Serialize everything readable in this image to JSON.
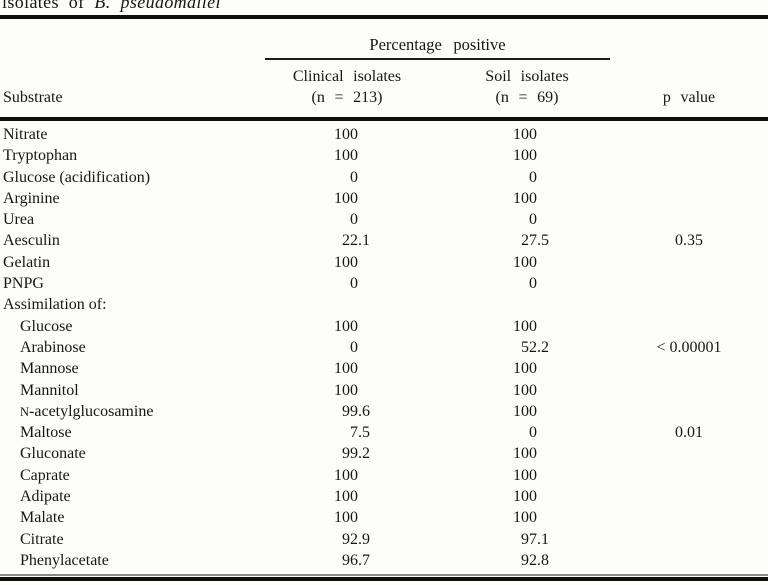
{
  "caption": {
    "plain": "isolates of",
    "italic": "B. pseudomallei"
  },
  "table": {
    "spanner": "Percentage positive",
    "columns": {
      "substrate": "Substrate",
      "clinical_line1": "Clinical isolates",
      "clinical_line2": "(n = 213)",
      "soil_line1": "Soil isolates",
      "soil_line2": "(n = 69)",
      "p": "p value"
    },
    "rows": [
      {
        "label": "Nitrate",
        "clinical": "100",
        "soil": "100",
        "p": ""
      },
      {
        "label": "Tryptophan",
        "clinical": "100",
        "soil": "100",
        "p": ""
      },
      {
        "label": "Glucose (acidification)",
        "clinical": "0",
        "soil": "0",
        "p": ""
      },
      {
        "label": "Arginine",
        "clinical": "100",
        "soil": "100",
        "p": ""
      },
      {
        "label": "Urea",
        "clinical": "0",
        "soil": "0",
        "p": ""
      },
      {
        "label": "Aesculin",
        "clinical": "22.1",
        "soil": "27.5",
        "p": "0.35"
      },
      {
        "label": "Gelatin",
        "clinical": "100",
        "soil": "100",
        "p": ""
      },
      {
        "label": "PNPG",
        "clinical": "0",
        "soil": "0",
        "p": ""
      },
      {
        "label": "Assimilation of:",
        "clinical": "",
        "soil": "",
        "p": "",
        "section": true
      },
      {
        "label": "Glucose",
        "clinical": "100",
        "soil": "100",
        "p": "",
        "indent": true
      },
      {
        "label": "Arabinose",
        "clinical": "0",
        "soil": "52.2",
        "p": "< 0.00001",
        "indent": true
      },
      {
        "label": "Mannose",
        "clinical": "100",
        "soil": "100",
        "p": "",
        "indent": true
      },
      {
        "label": "Mannitol",
        "clinical": "100",
        "soil": "100",
        "p": "",
        "indent": true
      },
      {
        "label": "N-acetylglucosamine",
        "clinical": "99.6",
        "soil": "100",
        "p": "",
        "indent": true,
        "small_cap_first": true
      },
      {
        "label": "Maltose",
        "clinical": "7.5",
        "soil": "0",
        "p": "0.01",
        "indent": true
      },
      {
        "label": "Gluconate",
        "clinical": "99.2",
        "soil": "100",
        "p": "",
        "indent": true
      },
      {
        "label": "Caprate",
        "clinical": "100",
        "soil": "100",
        "p": "",
        "indent": true
      },
      {
        "label": "Adipate",
        "clinical": "100",
        "soil": "100",
        "p": "",
        "indent": true
      },
      {
        "label": "Malate",
        "clinical": "100",
        "soil": "100",
        "p": "",
        "indent": true
      },
      {
        "label": "Citrate",
        "clinical": "92.9",
        "soil": "97.1",
        "p": "",
        "indent": true
      },
      {
        "label": "Phenylacetate",
        "clinical": "96.7",
        "soil": "92.8",
        "p": "",
        "indent": true
      }
    ]
  }
}
